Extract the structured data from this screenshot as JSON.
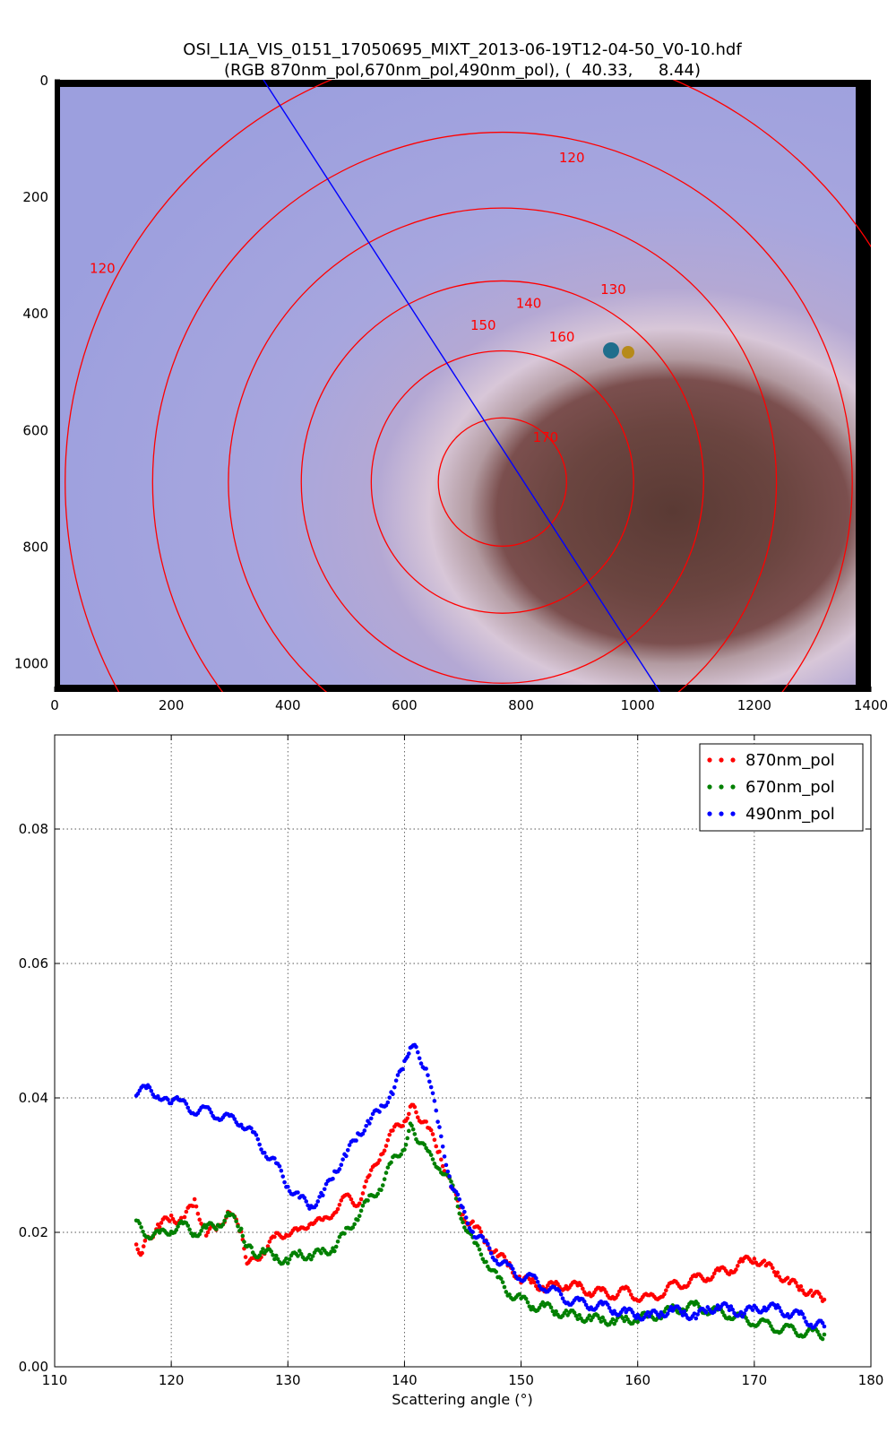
{
  "figure": {
    "title_line1": "OSI_L1A_VIS_0151_17050695_MIXT_2013-06-19T12-04-50_V0-10.hdf",
    "title_line2": "(RGB 870nm_pol,670nm_pol,490nm_pol), (  40.33,     8.44)"
  },
  "chart_data": [
    {
      "type": "image",
      "xlim": [
        0,
        1400
      ],
      "ylim": [
        1050,
        0
      ],
      "xticks": [
        0,
        200,
        400,
        600,
        800,
        1000,
        1200,
        1400
      ],
      "yticks": [
        0,
        200,
        400,
        600,
        800,
        1000
      ],
      "glory_center": [
        768,
        690
      ],
      "contours": [
        {
          "label": "170",
          "radius": 110,
          "label_at": [
            842,
            612
          ]
        },
        {
          "label": "160",
          "radius": 225,
          "label_at": [
            870,
            440
          ]
        },
        {
          "label": "150",
          "radius": 345,
          "label_at": [
            735,
            420
          ]
        },
        {
          "label": "140",
          "radius": 470,
          "label_at": [
            813,
            382
          ]
        },
        {
          "label": "130",
          "radius": 600,
          "label_at": [
            958,
            358
          ]
        },
        {
          "label": "120",
          "radius": 750,
          "label_at": [
            82,
            322
          ]
        },
        {
          "label": "120",
          "radius": 750,
          "label_at": [
            887,
            132
          ]
        }
      ],
      "transect": {
        "from": [
          358,
          0
        ],
        "to": [
          1038,
          1050
        ]
      },
      "contour_color": "#ff0000",
      "transect_color": "#0000ff"
    },
    {
      "type": "scatter",
      "xlabel": "Scattering angle (°)",
      "ylabel": "",
      "xlim": [
        110,
        180
      ],
      "ylim": [
        0.0,
        0.094
      ],
      "xticks": [
        "110",
        "120",
        "130",
        "140",
        "150",
        "160",
        "170",
        "180"
      ],
      "yticks": [
        "0.00",
        "0.02",
        "0.04",
        "0.06",
        "0.08"
      ],
      "grid": true,
      "legend_position": "top-right",
      "series": [
        {
          "name": "870nm_pol",
          "color": "#ff0000",
          "points": [
            [
              117,
              0.0182
            ],
            [
              117.5,
              0.017
            ],
            [
              118,
              0.0192
            ],
            [
              119,
              0.021
            ],
            [
              120,
              0.0222
            ],
            [
              121,
              0.0218
            ],
            [
              122,
              0.0245
            ],
            [
              123,
              0.02
            ],
            [
              124,
              0.0205
            ],
            [
              125,
              0.0235
            ],
            [
              126,
              0.0195
            ],
            [
              126.5,
              0.016
            ],
            [
              127,
              0.0155
            ],
            [
              128,
              0.0175
            ],
            [
              129,
              0.0192
            ],
            [
              130,
              0.0202
            ],
            [
              131,
              0.0198
            ],
            [
              132,
              0.022
            ],
            [
              133,
              0.0212
            ],
            [
              134,
              0.0235
            ],
            [
              135,
              0.025
            ],
            [
              136,
              0.0245
            ],
            [
              137,
              0.028
            ],
            [
              138,
              0.032
            ],
            [
              139,
              0.0348
            ],
            [
              140,
              0.0368
            ],
            [
              140.5,
              0.0385
            ],
            [
              141,
              0.038
            ],
            [
              142,
              0.0355
            ],
            [
              143,
              0.032
            ],
            [
              144,
              0.0268
            ],
            [
              145,
              0.0225
            ],
            [
              146,
              0.021
            ],
            [
              147,
              0.0185
            ],
            [
              148,
              0.0168
            ],
            [
              149,
              0.015
            ],
            [
              150,
              0.013
            ],
            [
              151,
              0.0125
            ],
            [
              152,
              0.0118
            ],
            [
              153,
              0.012
            ],
            [
              154,
              0.0122
            ],
            [
              155,
              0.0118
            ],
            [
              156,
              0.0112
            ],
            [
              157,
              0.011
            ],
            [
              158,
              0.0108
            ],
            [
              159,
              0.0112
            ],
            [
              160,
              0.0105
            ],
            [
              161,
              0.01
            ],
            [
              162,
              0.011
            ],
            [
              163,
              0.012
            ],
            [
              164,
              0.0125
            ],
            [
              165,
              0.013
            ],
            [
              166,
              0.0135
            ],
            [
              167,
              0.014
            ],
            [
              168,
              0.0145
            ],
            [
              169,
              0.0155
            ],
            [
              170,
              0.0162
            ],
            [
              171,
              0.015
            ],
            [
              172,
              0.014
            ],
            [
              173,
              0.0125
            ],
            [
              174,
              0.0118
            ],
            [
              175,
              0.0108
            ],
            [
              176,
              0.01
            ]
          ]
        },
        {
          "name": "670nm_pol",
          "color": "#008000",
          "points": [
            [
              117,
              0.0212
            ],
            [
              118,
              0.0198
            ],
            [
              119,
              0.0195
            ],
            [
              120,
              0.0205
            ],
            [
              121,
              0.021
            ],
            [
              122,
              0.02
            ],
            [
              123,
              0.0205
            ],
            [
              124,
              0.0212
            ],
            [
              125,
              0.0225
            ],
            [
              126,
              0.0205
            ],
            [
              126.5,
              0.018
            ],
            [
              127,
              0.0168
            ],
            [
              128,
              0.0172
            ],
            [
              129,
              0.0162
            ],
            [
              130,
              0.0158
            ],
            [
              131,
              0.0168
            ],
            [
              132,
              0.0165
            ],
            [
              133,
              0.017
            ],
            [
              134,
              0.0178
            ],
            [
              135,
              0.02
            ],
            [
              136,
              0.0225
            ],
            [
              137,
              0.0248
            ],
            [
              138,
              0.027
            ],
            [
              139,
              0.0305
            ],
            [
              140,
              0.033
            ],
            [
              140.5,
              0.0355
            ],
            [
              141,
              0.0345
            ],
            [
              142,
              0.0315
            ],
            [
              143,
              0.03
            ],
            [
              144,
              0.027
            ],
            [
              145,
              0.022
            ],
            [
              146,
              0.018
            ],
            [
              147,
              0.016
            ],
            [
              148,
              0.013
            ],
            [
              149,
              0.011
            ],
            [
              150,
              0.01
            ],
            [
              151,
              0.009
            ],
            [
              152,
              0.009
            ],
            [
              153,
              0.0082
            ],
            [
              154,
              0.0078
            ],
            [
              155,
              0.0075
            ],
            [
              156,
              0.0072
            ],
            [
              157,
              0.007
            ],
            [
              158,
              0.0068
            ],
            [
              159,
              0.007
            ],
            [
              160,
              0.0072
            ],
            [
              161,
              0.0075
            ],
            [
              162,
              0.0078
            ],
            [
              163,
              0.0085
            ],
            [
              164,
              0.0088
            ],
            [
              165,
              0.009
            ],
            [
              166,
              0.0085
            ],
            [
              167,
              0.008
            ],
            [
              168,
              0.0078
            ],
            [
              169,
              0.007
            ],
            [
              170,
              0.0068
            ],
            [
              171,
              0.0062
            ],
            [
              172,
              0.0058
            ],
            [
              173,
              0.0055
            ],
            [
              174,
              0.0052
            ],
            [
              175,
              0.005
            ],
            [
              176,
              0.0048
            ]
          ]
        },
        {
          "name": "490nm_pol",
          "color": "#0000ff",
          "points": [
            [
              117,
              0.041
            ],
            [
              118,
              0.0412
            ],
            [
              119,
              0.0405
            ],
            [
              120,
              0.0385
            ],
            [
              120.5,
              0.0408
            ],
            [
              121,
              0.039
            ],
            [
              122,
              0.0382
            ],
            [
              123,
              0.038
            ],
            [
              124,
              0.0375
            ],
            [
              125,
              0.0368
            ],
            [
              126,
              0.0365
            ],
            [
              127,
              0.0345
            ],
            [
              128,
              0.0322
            ],
            [
              129,
              0.03
            ],
            [
              130,
              0.027
            ],
            [
              131,
              0.025
            ],
            [
              132,
              0.024
            ],
            [
              133,
              0.0255
            ],
            [
              134,
              0.029
            ],
            [
              135,
              0.0315
            ],
            [
              136,
              0.0345
            ],
            [
              137,
              0.0365
            ],
            [
              138,
              0.0385
            ],
            [
              139,
              0.041
            ],
            [
              140,
              0.045
            ],
            [
              140.5,
              0.048
            ],
            [
              141,
              0.047
            ],
            [
              142,
              0.044
            ],
            [
              143,
              0.035
            ],
            [
              144,
              0.0275
            ],
            [
              145,
              0.023
            ],
            [
              146,
              0.02
            ],
            [
              147,
              0.018
            ],
            [
              148,
              0.016
            ],
            [
              149,
              0.0145
            ],
            [
              150,
              0.0135
            ],
            [
              151,
              0.013
            ],
            [
              152,
              0.012
            ],
            [
              153,
              0.011
            ],
            [
              154,
              0.01
            ],
            [
              155,
              0.0095
            ],
            [
              156,
              0.0092
            ],
            [
              157,
              0.009
            ],
            [
              158,
              0.0085
            ],
            [
              159,
              0.008
            ],
            [
              160,
              0.0078
            ],
            [
              161,
              0.0075
            ],
            [
              162,
              0.008
            ],
            [
              163,
              0.0085
            ],
            [
              164,
              0.008
            ],
            [
              165,
              0.0075
            ],
            [
              166,
              0.0085
            ],
            [
              167,
              0.009
            ],
            [
              168,
              0.0085
            ],
            [
              169,
              0.008
            ],
            [
              170,
              0.0085
            ],
            [
              171,
              0.009
            ],
            [
              172,
              0.0085
            ],
            [
              173,
              0.008
            ],
            [
              174,
              0.0075
            ],
            [
              175,
              0.0065
            ],
            [
              176,
              0.006
            ]
          ]
        }
      ]
    }
  ]
}
